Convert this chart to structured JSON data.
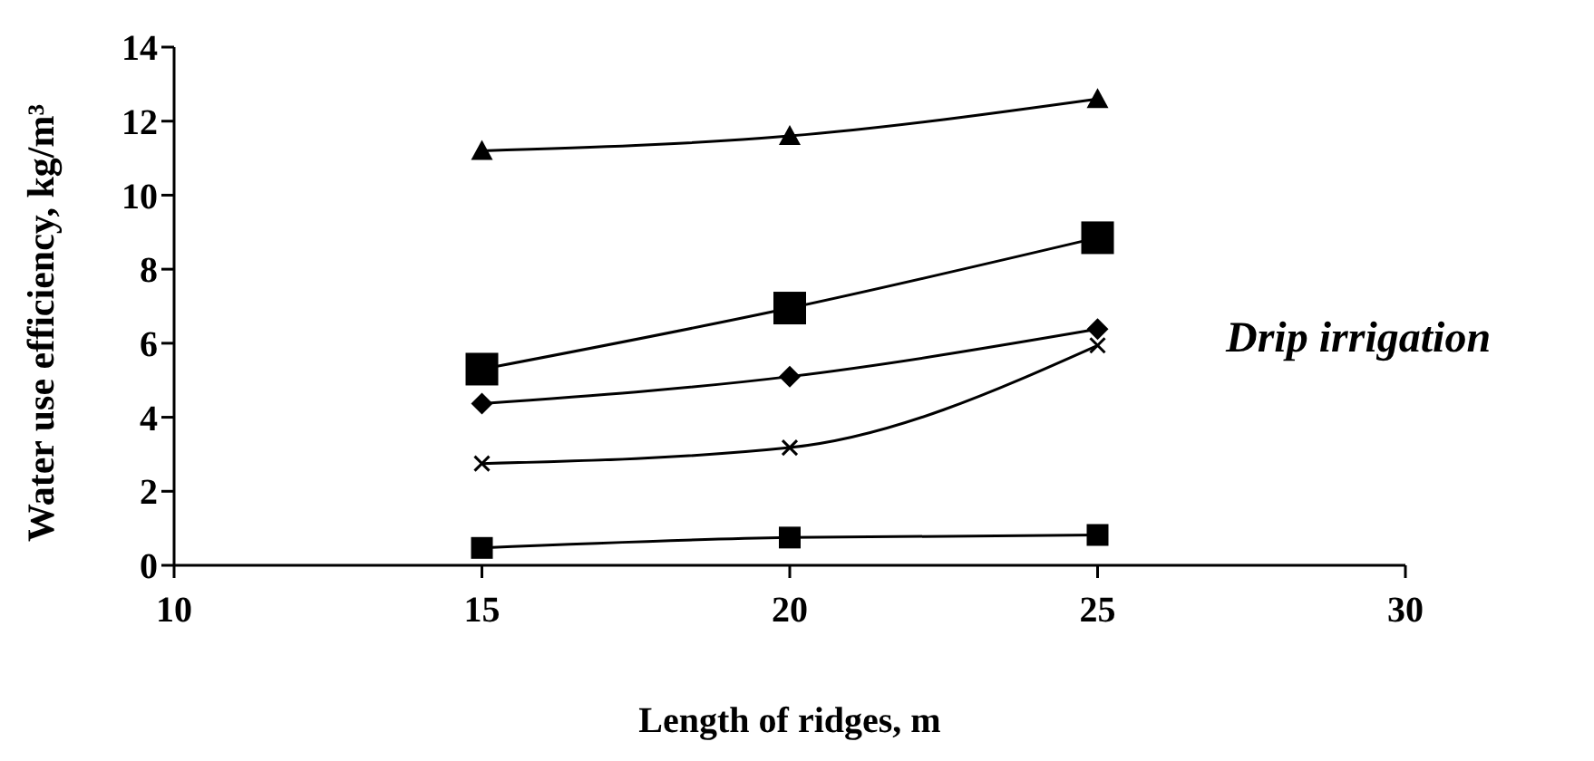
{
  "chart_data": {
    "type": "line",
    "xlabel": "Length of ridges, m",
    "ylabel": "Water use efficiency, kg/m³",
    "x": [
      15,
      20,
      25
    ],
    "series": [
      {
        "color": "#000000",
        "marker": "triangle",
        "values": [
          11.2,
          11.6,
          12.6
        ]
      },
      {
        "color": "#000000",
        "marker": "square",
        "values": [
          5.3,
          6.95,
          8.85
        ]
      },
      {
        "color": "#000000",
        "marker": "diamond",
        "values": [
          4.37,
          5.1,
          6.38
        ]
      },
      {
        "color": "#000000",
        "marker": "cross",
        "values": [
          2.75,
          3.18,
          5.94
        ]
      },
      {
        "color": "#000000",
        "marker": "square",
        "values": [
          0.47,
          0.75,
          0.82
        ]
      }
    ],
    "xlim": [
      10,
      30
    ],
    "xticks": [
      10,
      15,
      20,
      25,
      30
    ],
    "ylim": [
      0,
      14
    ],
    "yticks": [
      0,
      2,
      4,
      6,
      8,
      10,
      12,
      14
    ],
    "grid": false,
    "legend": false,
    "annotations": [
      "Drip irrigation"
    ]
  }
}
